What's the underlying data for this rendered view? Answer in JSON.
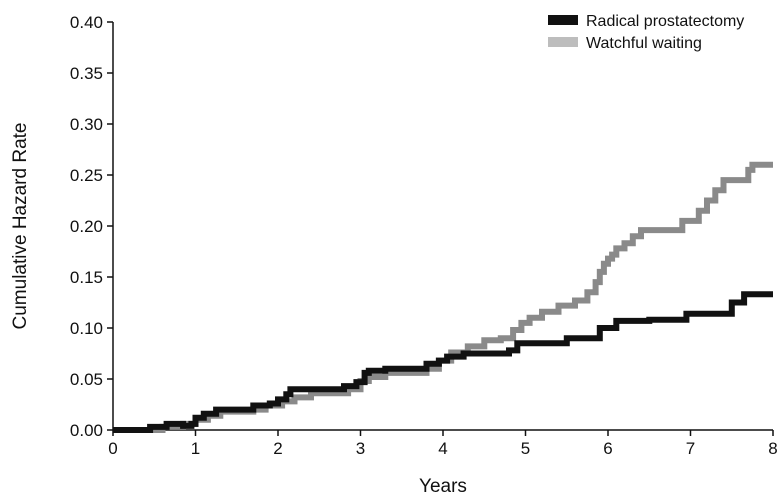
{
  "chart_data": {
    "type": "line",
    "step": true,
    "xlabel": "Years",
    "ylabel": "Cumulative Hazard Rate",
    "xlim": [
      0,
      8
    ],
    "ylim": [
      0,
      0.4
    ],
    "x_ticks": [
      "0",
      "1",
      "2",
      "3",
      "4",
      "5",
      "6",
      "7",
      "8"
    ],
    "y_ticks": [
      "0.00",
      "0.05",
      "0.10",
      "0.15",
      "0.20",
      "0.25",
      "0.30",
      "0.35",
      "0.40"
    ],
    "grid": false,
    "legend_position": "top-right",
    "series": [
      {
        "name": "Radical prostatectomy",
        "color": "#111111",
        "x": [
          0,
          0.45,
          0.65,
          0.85,
          0.95,
          1.0,
          1.1,
          1.25,
          1.7,
          1.9,
          2.0,
          2.1,
          2.15,
          2.8,
          2.95,
          3.05,
          3.1,
          3.3,
          3.8,
          3.95,
          4.05,
          4.25,
          4.8,
          4.9,
          5.5,
          5.9,
          6.1,
          6.5,
          6.95,
          7.5,
          7.65,
          8.0
        ],
        "y": [
          0,
          0.003,
          0.006,
          0.004,
          0.006,
          0.012,
          0.016,
          0.02,
          0.024,
          0.026,
          0.03,
          0.035,
          0.04,
          0.043,
          0.047,
          0.056,
          0.058,
          0.06,
          0.065,
          0.068,
          0.072,
          0.075,
          0.078,
          0.085,
          0.09,
          0.1,
          0.107,
          0.108,
          0.114,
          0.125,
          0.133,
          0.133
        ]
      },
      {
        "name": "Watchful waiting",
        "color": "#8a8a8a",
        "x": [
          0,
          0.6,
          0.85,
          1.0,
          1.15,
          1.3,
          1.7,
          1.85,
          2.05,
          2.2,
          2.4,
          2.85,
          3.0,
          3.1,
          3.3,
          3.8,
          3.95,
          4.1,
          4.3,
          4.5,
          4.7,
          4.85,
          4.95,
          5.05,
          5.2,
          5.4,
          5.6,
          5.75,
          5.85,
          5.9,
          5.95,
          6.0,
          6.05,
          6.1,
          6.2,
          6.3,
          6.4,
          6.9,
          7.1,
          7.2,
          7.3,
          7.4,
          7.7,
          7.75,
          8.0
        ],
        "y": [
          0,
          0.003,
          0.006,
          0.01,
          0.014,
          0.018,
          0.02,
          0.024,
          0.028,
          0.032,
          0.036,
          0.04,
          0.048,
          0.052,
          0.056,
          0.06,
          0.068,
          0.076,
          0.082,
          0.088,
          0.09,
          0.098,
          0.105,
          0.11,
          0.116,
          0.122,
          0.127,
          0.135,
          0.145,
          0.155,
          0.163,
          0.168,
          0.172,
          0.178,
          0.183,
          0.19,
          0.196,
          0.205,
          0.215,
          0.225,
          0.235,
          0.245,
          0.255,
          0.26,
          0.26
        ]
      }
    ]
  }
}
